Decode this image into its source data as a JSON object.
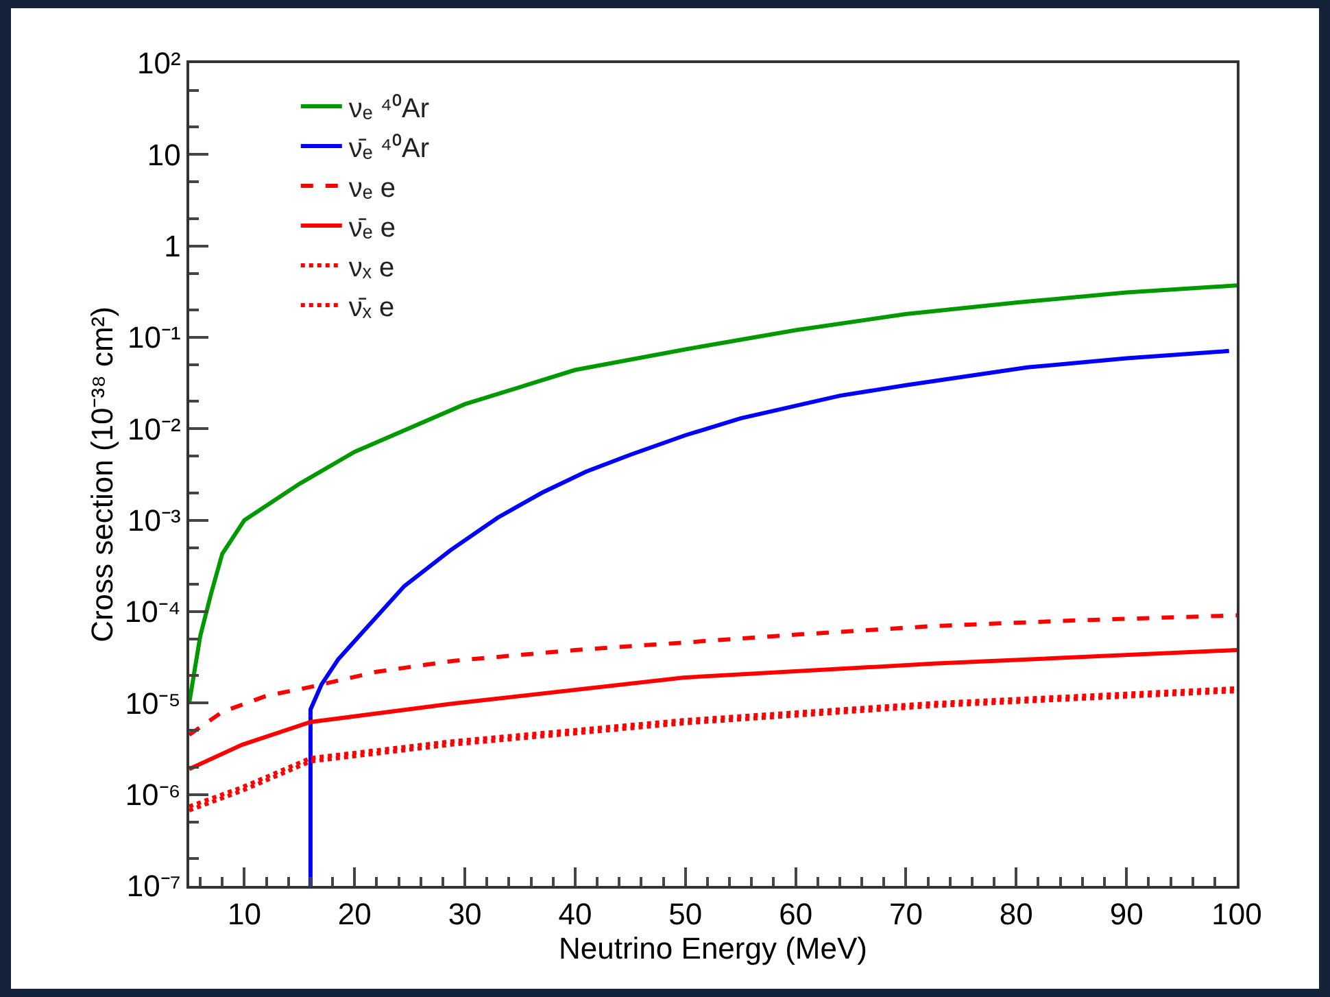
{
  "chart_data": {
    "type": "line",
    "xlabel": "Neutrino Energy (MeV)",
    "ylabel": "Cross section (10⁻³⁸ cm²)",
    "log": "y",
    "xlim": [
      5,
      100
    ],
    "xticks": [
      10,
      20,
      30,
      40,
      50,
      60,
      70,
      80,
      90,
      100
    ],
    "ylim": [
      1e-07,
      100
    ],
    "yticks": [
      {
        "value": 1e-07,
        "label": "10⁻⁷"
      },
      {
        "value": 1e-06,
        "label": "10⁻⁶"
      },
      {
        "value": 1e-05,
        "label": "10⁻⁵"
      },
      {
        "value": 0.0001,
        "label": "10⁻⁴"
      },
      {
        "value": 0.001,
        "label": "10⁻³"
      },
      {
        "value": 0.01,
        "label": "10⁻²"
      },
      {
        "value": 0.1,
        "label": "10⁻¹"
      },
      1,
      10,
      {
        "value": 100,
        "label": "10²"
      }
    ],
    "grid": false,
    "legend": "top left",
    "marker": "none",
    "series": [
      {
        "name": "νₑ ⁴⁰Ar",
        "color": "#009900",
        "line_style": "solid",
        "x": [
          5,
          6,
          7,
          8,
          10,
          15,
          20,
          30,
          40,
          50,
          60,
          70,
          80,
          90,
          100
        ],
        "values": [
          1e-05,
          5.4e-05,
          0.00016,
          0.00043,
          0.001,
          0.0025,
          0.0056,
          0.0186,
          0.044,
          0.074,
          0.12,
          0.18,
          0.24,
          0.31,
          0.37
        ]
      },
      {
        "name": "ν̄ₑ ⁴⁰Ar",
        "color": "#0000ff",
        "line_style": "solid",
        "x": [
          16,
          16,
          17,
          18.5,
          20.4,
          24.5,
          28.7,
          33,
          37,
          41,
          45,
          50,
          55,
          64,
          70,
          81,
          90,
          99.3
        ],
        "values": [
          1e-07,
          8.5e-06,
          1.6e-05,
          3e-05,
          5.4e-05,
          0.00019,
          0.00047,
          0.00107,
          0.002,
          0.0034,
          0.0052,
          0.0085,
          0.013,
          0.023,
          0.03,
          0.047,
          0.059,
          0.071
        ]
      },
      {
        "name": "νₑ e",
        "color": "#ff0000",
        "line_style": "dashed",
        "x": [
          5,
          8,
          12,
          16,
          22,
          29,
          40,
          50,
          60,
          72,
          85,
          100
        ],
        "values": [
          4.5e-06,
          8e-06,
          1.2e-05,
          1.5e-05,
          2.2e-05,
          2.9e-05,
          3.8e-05,
          4.6e-05,
          5.6e-05,
          6.9e-05,
          8e-05,
          9.1e-05
        ]
      },
      {
        "name": "ν̄ₑ e",
        "color": "#ff0000",
        "line_style": "solid",
        "x": [
          5,
          9.8,
          16,
          28.7,
          49.8,
          72.5,
          100
        ],
        "values": [
          1.9e-06,
          3.5e-06,
          6.2e-06,
          9.8e-06,
          1.9e-05,
          2.7e-05,
          3.8e-05
        ]
      },
      {
        "name": "νₓ e",
        "color": "#ff0000",
        "line_style": "dotted",
        "x": [
          5,
          9.8,
          16,
          28.7,
          49.8,
          72.5,
          100
        ],
        "values": [
          7.4e-07,
          1.2e-06,
          2.5e-06,
          3.8e-06,
          6.5e-06,
          1e-05,
          1.45e-05
        ]
      },
      {
        "name": "ν̄ₓ e",
        "color": "#ff0000",
        "line_style": "dotted",
        "x": [
          5,
          9.8,
          16,
          28.7,
          49.8,
          72.5,
          100
        ],
        "values": [
          6.7e-07,
          1.1e-06,
          2.3e-06,
          3.5e-06,
          6e-06,
          9.3e-06,
          1.35e-05
        ]
      }
    ]
  }
}
